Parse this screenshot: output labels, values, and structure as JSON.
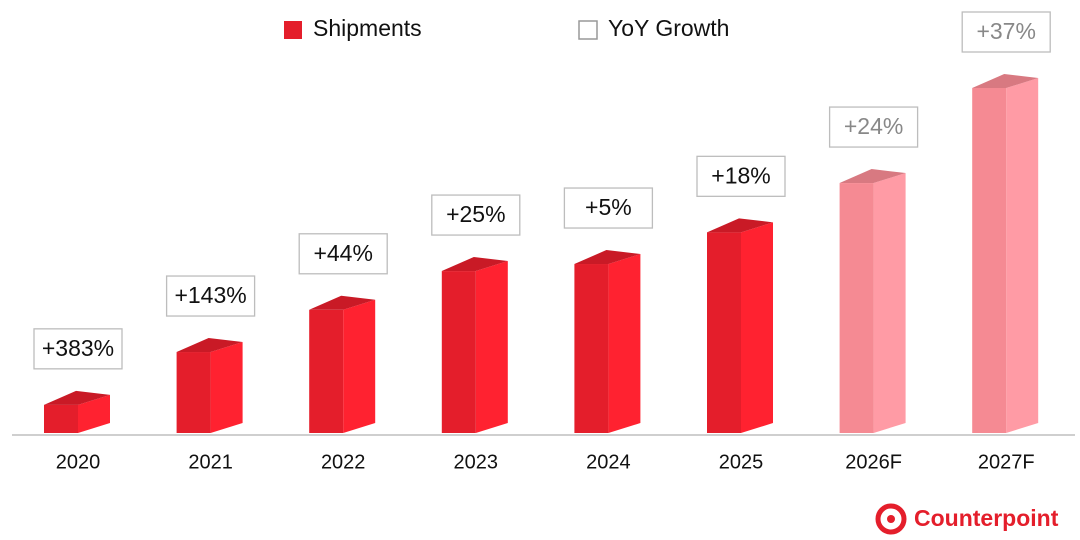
{
  "chart_data": {
    "type": "bar3d",
    "categories": [
      "2020",
      "2021",
      "2022",
      "2023",
      "2024",
      "2025",
      "2026F",
      "2027F"
    ],
    "series": [
      {
        "name": "Shipments",
        "color": "#e41e2b",
        "colors": [
          "#e41e2b",
          "#e41e2b",
          "#e41e2b",
          "#e41e2b",
          "#e41e2b",
          "#e41e2b",
          "#f58a93",
          "#f58a93"
        ],
        "values": [
          8,
          23,
          35,
          46,
          48,
          57,
          71,
          98
        ]
      },
      {
        "name": "YoY Growth",
        "color": "#ffffff",
        "values": [
          383,
          143,
          44,
          25,
          5,
          18,
          24,
          37
        ],
        "value_labels": [
          "+383%",
          "+143%",
          "+44%",
          "+25%",
          "+5%",
          "+18%",
          "+24%",
          "+37%"
        ],
        "label_colors": [
          "#111111",
          "#111111",
          "#111111",
          "#111111",
          "#111111",
          "#111111",
          "#888888",
          "#888888"
        ]
      }
    ],
    "source": "Counterpoint"
  }
}
